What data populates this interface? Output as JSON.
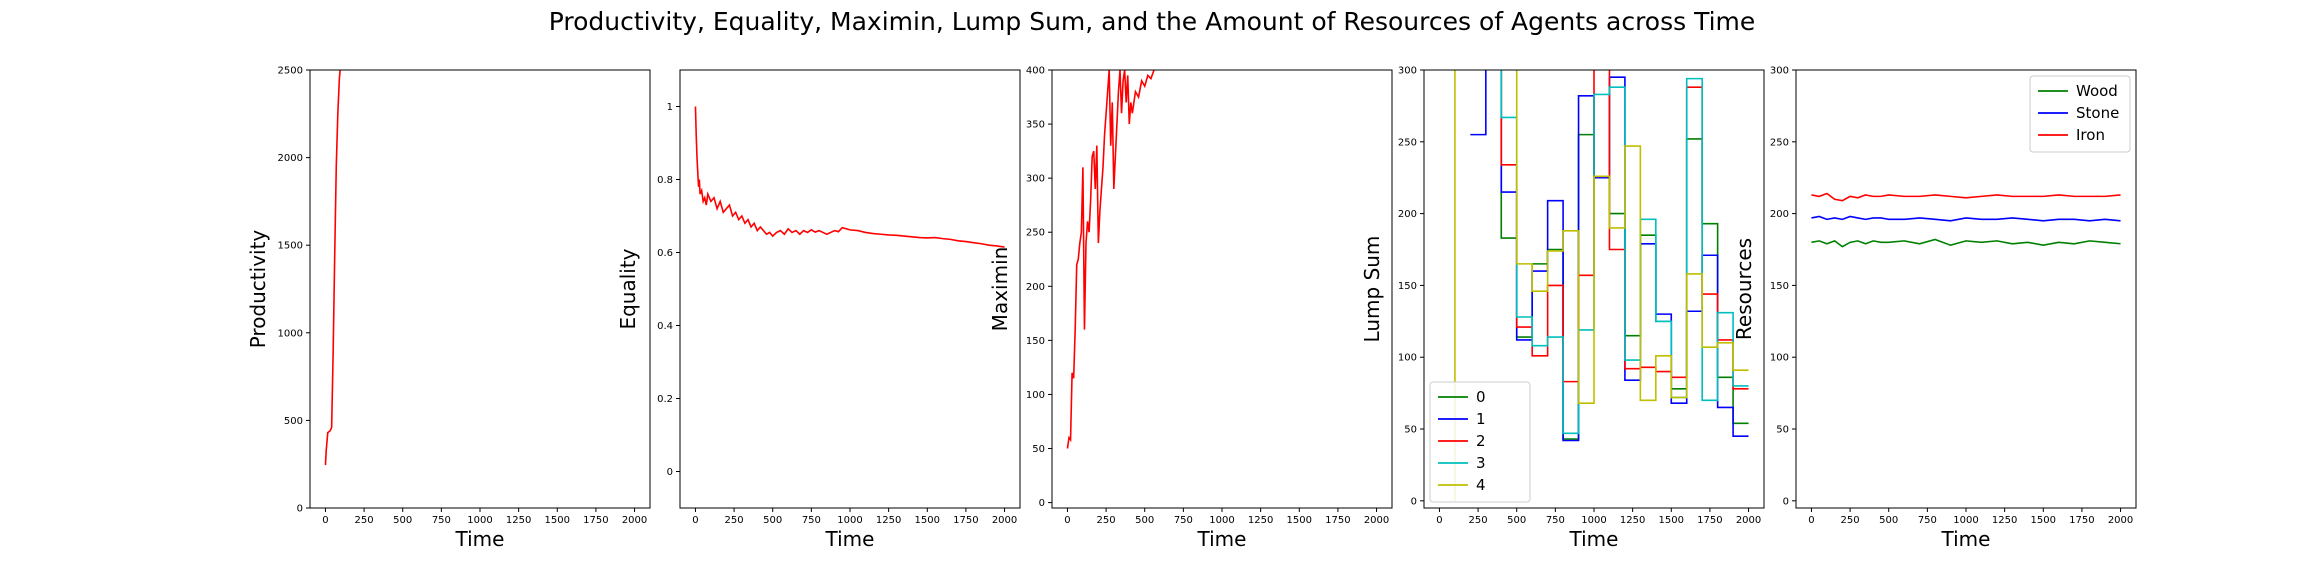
{
  "figure": {
    "title": "Productivity, Equality, Maximin, Lump Sum, and the Amount of Resources of Agents across Time"
  },
  "colors": {
    "green": "#008000",
    "blue": "#0000ff",
    "red": "#ff0000",
    "cyan": "#00bfbf",
    "olive": "#bfbf00"
  },
  "chart_data": [
    {
      "type": "line",
      "xlabel": "Time",
      "ylabel": "Productivity",
      "xlim": [
        -100,
        2100
      ],
      "ylim": [
        0,
        2500
      ],
      "xticks": [
        0,
        250,
        500,
        750,
        1000,
        1250,
        1500,
        1750,
        2000
      ],
      "yticks": [
        0,
        500,
        1000,
        1500,
        2000,
        2500
      ],
      "legend": null,
      "series": [
        {
          "color": "red",
          "x": [
            0,
            5,
            15,
            30,
            40,
            50,
            60,
            70,
            80,
            90,
            95
          ],
          "y": [
            245,
            330,
            430,
            440,
            460,
            900,
            1450,
            1950,
            2250,
            2450,
            2500
          ]
        }
      ]
    },
    {
      "type": "line",
      "xlabel": "Time",
      "ylabel": "Equality",
      "xlim": [
        -100,
        2100
      ],
      "ylim": [
        -0.1,
        1.1
      ],
      "xticks": [
        0,
        250,
        500,
        750,
        1000,
        1250,
        1500,
        1750,
        2000
      ],
      "yticks": [
        0.0,
        0.2,
        0.4,
        0.6,
        0.8,
        1.0
      ],
      "legend": null,
      "series": [
        {
          "color": "red",
          "x": [
            0,
            5,
            10,
            15,
            20,
            25,
            30,
            40,
            50,
            60,
            70,
            80,
            100,
            120,
            140,
            160,
            180,
            200,
            220,
            240,
            260,
            280,
            300,
            320,
            340,
            360,
            380,
            400,
            420,
            440,
            460,
            480,
            500,
            525,
            550,
            575,
            600,
            625,
            650,
            675,
            700,
            725,
            750,
            775,
            800,
            825,
            850,
            875,
            900,
            925,
            950,
            975,
            1000,
            1050,
            1100,
            1150,
            1200,
            1250,
            1300,
            1350,
            1400,
            1450,
            1500,
            1550,
            1600,
            1650,
            1700,
            1750,
            1800,
            1850,
            1900,
            1950,
            2000
          ],
          "y": [
            1.0,
            0.92,
            0.86,
            0.82,
            0.78,
            0.8,
            0.76,
            0.77,
            0.74,
            0.75,
            0.73,
            0.76,
            0.74,
            0.75,
            0.72,
            0.74,
            0.71,
            0.72,
            0.73,
            0.7,
            0.71,
            0.69,
            0.7,
            0.68,
            0.69,
            0.67,
            0.68,
            0.66,
            0.67,
            0.66,
            0.65,
            0.655,
            0.645,
            0.655,
            0.66,
            0.65,
            0.665,
            0.655,
            0.66,
            0.65,
            0.66,
            0.655,
            0.662,
            0.656,
            0.66,
            0.655,
            0.65,
            0.655,
            0.66,
            0.657,
            0.668,
            0.665,
            0.662,
            0.66,
            0.655,
            0.652,
            0.65,
            0.648,
            0.647,
            0.645,
            0.643,
            0.641,
            0.64,
            0.641,
            0.638,
            0.636,
            0.632,
            0.63,
            0.627,
            0.624,
            0.62,
            0.618,
            0.615
          ]
        }
      ]
    },
    {
      "type": "line",
      "xlabel": "Time",
      "ylabel": "Maximin",
      "xlim": [
        -100,
        2100
      ],
      "ylim": [
        -5,
        400
      ],
      "xticks": [
        0,
        250,
        500,
        750,
        1000,
        1250,
        1500,
        1750,
        2000
      ],
      "yticks": [
        0,
        50,
        100,
        150,
        200,
        250,
        300,
        350,
        400
      ],
      "legend": null,
      "series": [
        {
          "color": "red",
          "x": [
            0,
            10,
            20,
            30,
            40,
            50,
            60,
            70,
            80,
            90,
            100,
            110,
            120,
            130,
            140,
            150,
            160,
            170,
            180,
            190,
            200,
            210,
            220,
            230,
            240,
            250,
            260,
            270,
            280,
            290,
            300,
            310,
            320,
            330,
            340,
            350,
            360,
            370,
            380,
            390,
            400,
            410,
            420,
            440,
            460,
            480,
            500,
            520,
            540,
            560
          ],
          "y": [
            50,
            60,
            58,
            120,
            115,
            160,
            220,
            225,
            240,
            250,
            310,
            160,
            240,
            260,
            250,
            280,
            320,
            325,
            290,
            330,
            240,
            270,
            290,
            310,
            340,
            360,
            380,
            400,
            330,
            370,
            290,
            320,
            350,
            380,
            400,
            360,
            390,
            400,
            370,
            395,
            350,
            370,
            360,
            380,
            375,
            390,
            385,
            395,
            392,
            400
          ]
        }
      ]
    },
    {
      "type": "line",
      "xlabel": "Time",
      "ylabel": "Lump Sum",
      "xlim": [
        -100,
        2100
      ],
      "ylim": [
        -5,
        300
      ],
      "xticks": [
        0,
        250,
        500,
        750,
        1000,
        1250,
        1500,
        1750,
        2000
      ],
      "yticks": [
        0,
        50,
        100,
        150,
        200,
        250,
        300
      ],
      "legend": {
        "position": "lower left",
        "entries": [
          "0",
          "1",
          "2",
          "3",
          "4"
        ]
      },
      "segments": {
        "starts": [
          200,
          300,
          400,
          500,
          600,
          700,
          800,
          900,
          1000,
          1100,
          1200,
          1300,
          1400,
          1500,
          1600,
          1700,
          1800,
          1900
        ],
        "end": 2000
      },
      "series": [
        {
          "name": "0",
          "color": "green",
          "x_start": 200,
          "values": [
            310,
            310,
            183,
            114,
            165,
            175,
            43,
            255,
            225,
            200,
            115,
            185,
            125,
            78,
            252,
            193,
            86,
            54
          ]
        },
        {
          "name": "1",
          "color": "blue",
          "x_start": 200,
          "values": [
            255,
            310,
            215,
            112,
            160,
            209,
            42,
            282,
            225,
            295,
            84,
            179,
            130,
            68,
            132,
            171,
            65,
            45
          ]
        },
        {
          "name": "2",
          "color": "red",
          "x_start": 200,
          "values": [
            310,
            310,
            234,
            121,
            101,
            150,
            83,
            157,
            310,
            175,
            92,
            93,
            90,
            86,
            288,
            144,
            112,
            78
          ]
        },
        {
          "name": "3",
          "color": "cyan",
          "x_start": 200,
          "values": [
            310,
            310,
            267,
            128,
            108,
            114,
            47,
            119,
            283,
            288,
            98,
            196,
            125,
            72,
            294,
            70,
            131,
            80
          ]
        },
        {
          "name": "4",
          "color": "olive",
          "x_start": 100,
          "values": [
            310,
            310,
            310,
            165,
            146,
            174,
            188,
            68,
            226,
            190,
            247,
            70,
            101,
            72,
            158,
            107,
            110,
            91
          ],
          "spike": {
            "x": 100,
            "y_from": 0
          }
        }
      ]
    },
    {
      "type": "line",
      "xlabel": "Time",
      "ylabel": "Resources",
      "xlim": [
        -100,
        2100
      ],
      "ylim": [
        -5,
        300
      ],
      "xticks": [
        0,
        250,
        500,
        750,
        1000,
        1250,
        1500,
        1750,
        2000
      ],
      "yticks": [
        0,
        50,
        100,
        150,
        200,
        250,
        300
      ],
      "legend": {
        "position": "upper right",
        "entries": [
          "Wood",
          "Stone",
          "Iron"
        ]
      },
      "series": [
        {
          "name": "Wood",
          "color": "green",
          "x": [
            0,
            50,
            100,
            150,
            200,
            250,
            300,
            350,
            400,
            450,
            500,
            600,
            700,
            800,
            900,
            1000,
            1100,
            1200,
            1300,
            1400,
            1500,
            1600,
            1700,
            1800,
            1900,
            2000
          ],
          "y": [
            180,
            181,
            179,
            181,
            177,
            180,
            181,
            179,
            181,
            180,
            180,
            181,
            179,
            182,
            178,
            181,
            180,
            181,
            179,
            180,
            178,
            180,
            179,
            181,
            180,
            179
          ]
        },
        {
          "name": "Stone",
          "color": "blue",
          "x": [
            0,
            50,
            100,
            150,
            200,
            250,
            300,
            350,
            400,
            450,
            500,
            600,
            700,
            800,
            900,
            1000,
            1100,
            1200,
            1300,
            1400,
            1500,
            1600,
            1700,
            1800,
            1900,
            2000
          ],
          "y": [
            197,
            198,
            196,
            197,
            196,
            198,
            197,
            196,
            197,
            197,
            196,
            196,
            197,
            196,
            195,
            197,
            196,
            196,
            197,
            196,
            195,
            196,
            196,
            195,
            196,
            195
          ]
        },
        {
          "name": "Iron",
          "color": "red",
          "x": [
            0,
            50,
            100,
            150,
            200,
            250,
            300,
            350,
            400,
            450,
            500,
            600,
            700,
            800,
            900,
            1000,
            1100,
            1200,
            1300,
            1400,
            1500,
            1600,
            1700,
            1800,
            1900,
            2000
          ],
          "y": [
            213,
            212,
            214,
            210,
            209,
            212,
            211,
            213,
            212,
            212,
            213,
            212,
            212,
            213,
            212,
            211,
            212,
            213,
            212,
            212,
            212,
            213,
            212,
            212,
            212,
            213
          ]
        }
      ]
    }
  ]
}
